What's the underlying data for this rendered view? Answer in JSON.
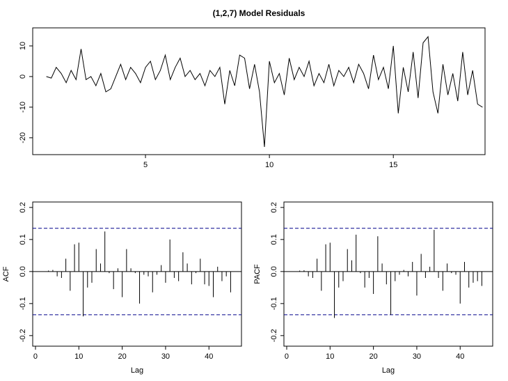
{
  "chart_data": [
    {
      "type": "line",
      "title": "(1,2,7) Model Residuals",
      "color": "#000000",
      "x": [
        1.0,
        1.2,
        1.4,
        1.6,
        1.8,
        2.0,
        2.2,
        2.4,
        2.6,
        2.8,
        3.0,
        3.2,
        3.4,
        3.6,
        3.8,
        4.0,
        4.2,
        4.4,
        4.6,
        4.8,
        5.0,
        5.2,
        5.4,
        5.6,
        5.8,
        6.0,
        6.2,
        6.4,
        6.6,
        6.8,
        7.0,
        7.2,
        7.4,
        7.6,
        7.8,
        8.0,
        8.2,
        8.4,
        8.6,
        8.8,
        9.0,
        9.2,
        9.4,
        9.6,
        9.8,
        10.0,
        10.2,
        10.4,
        10.6,
        10.8,
        11.0,
        11.2,
        11.4,
        11.6,
        11.8,
        12.0,
        12.2,
        12.4,
        12.6,
        12.8,
        13.0,
        13.2,
        13.4,
        13.6,
        13.8,
        14.0,
        14.2,
        14.4,
        14.6,
        14.8,
        15.0,
        15.2,
        15.4,
        15.6,
        15.8,
        16.0,
        16.2,
        16.4,
        16.6,
        16.8,
        17.0,
        17.2,
        17.4,
        17.6,
        17.8,
        18.0,
        18.2,
        18.4,
        18.6
      ],
      "values": [
        0,
        -0.5,
        3,
        1,
        -2,
        2,
        -1,
        9,
        -1,
        0,
        -3,
        1,
        -5,
        -4,
        0,
        4,
        -1,
        3,
        1,
        -2,
        3,
        5,
        -1,
        2,
        7,
        -1,
        3,
        6,
        0,
        2,
        -1,
        1,
        -3,
        2,
        0,
        3,
        -9,
        2,
        -3,
        7,
        6,
        -4,
        4,
        -5,
        -23,
        5,
        -2,
        1,
        -6,
        6,
        -1,
        3,
        0,
        5,
        -3,
        1,
        -2,
        4,
        -3,
        2,
        0,
        3,
        -2,
        4,
        1,
        -4,
        7,
        -1,
        3,
        -4,
        10,
        -12,
        3,
        -5,
        8,
        -7,
        11,
        13,
        -5,
        -12,
        4,
        -6,
        1,
        -8,
        8,
        -6,
        2,
        -9,
        -10
      ],
      "xlim": [
        0.45,
        18.7
      ],
      "ylim": [
        -25.5,
        15.9
      ],
      "xticks": [
        5,
        10,
        15
      ],
      "yticks": [
        10,
        0,
        -10,
        -20
      ]
    },
    {
      "type": "bar",
      "xlabel": "Lag",
      "ylabel": "ACF",
      "color": "#000000",
      "x": [
        1,
        2,
        3,
        4,
        5,
        6,
        7,
        8,
        9,
        10,
        11,
        12,
        13,
        14,
        15,
        16,
        17,
        18,
        19,
        20,
        21,
        22,
        23,
        24,
        25,
        26,
        27,
        28,
        29,
        30,
        31,
        32,
        33,
        34,
        35,
        36,
        37,
        38,
        39,
        40,
        41,
        42,
        43,
        44,
        45
      ],
      "values": [
        0,
        0,
        0.003,
        0.005,
        -0.015,
        -0.02,
        0.04,
        -0.06,
        0.085,
        0.09,
        -0.14,
        -0.05,
        -0.035,
        0.07,
        0.025,
        0.125,
        -0.005,
        -0.055,
        0.01,
        -0.08,
        0.07,
        0.01,
        -0.005,
        -0.1,
        -0.01,
        -0.015,
        -0.065,
        -0.01,
        0.02,
        -0.035,
        0.1,
        -0.02,
        -0.03,
        0.06,
        0.025,
        -0.04,
        -0.005,
        0.04,
        -0.04,
        -0.045,
        -0.08,
        0.015,
        -0.03,
        -0.015,
        -0.065
      ],
      "reference_lines": [
        0.135,
        -0.135
      ],
      "reference_color": "#00008b",
      "xlim": [
        -0.64,
        47.5
      ],
      "ylim": [
        -0.233,
        0.217
      ],
      "xticks": [
        0,
        10,
        20,
        30,
        40
      ],
      "yticks": [
        0.2,
        0.1,
        {
          "value": 0,
          "label": "0.0"
        },
        -0.1,
        -0.2
      ]
    },
    {
      "type": "bar",
      "xlabel": "Lag",
      "ylabel": "PACF",
      "color": "#000000",
      "x": [
        1,
        2,
        3,
        4,
        5,
        6,
        7,
        8,
        9,
        10,
        11,
        12,
        13,
        14,
        15,
        16,
        17,
        18,
        19,
        20,
        21,
        22,
        23,
        24,
        25,
        26,
        27,
        28,
        29,
        30,
        31,
        32,
        33,
        34,
        35,
        36,
        37,
        38,
        39,
        40,
        41,
        42,
        43,
        44,
        45
      ],
      "values": [
        0,
        0,
        0.003,
        0.004,
        -0.015,
        -0.02,
        0.04,
        -0.06,
        0.085,
        0.09,
        -0.145,
        -0.05,
        -0.03,
        0.07,
        0.035,
        0.115,
        -0.005,
        -0.05,
        -0.02,
        -0.07,
        0.11,
        0.025,
        -0.04,
        -0.135,
        -0.03,
        -0.01,
        0.005,
        -0.015,
        0.03,
        -0.075,
        0.055,
        -0.02,
        0.015,
        0.13,
        -0.02,
        -0.06,
        0.025,
        -0.005,
        -0.01,
        -0.1,
        0.03,
        -0.05,
        -0.035,
        -0.03,
        -0.045
      ],
      "reference_lines": [
        0.135,
        -0.135
      ],
      "reference_color": "#00008b",
      "xlim": [
        -0.64,
        47.5
      ],
      "ylim": [
        -0.233,
        0.217
      ],
      "xticks": [
        0,
        10,
        20,
        30,
        40
      ],
      "yticks": [
        0.2,
        0.1,
        {
          "value": 0,
          "label": "0.0"
        },
        -0.1,
        -0.2
      ]
    }
  ]
}
